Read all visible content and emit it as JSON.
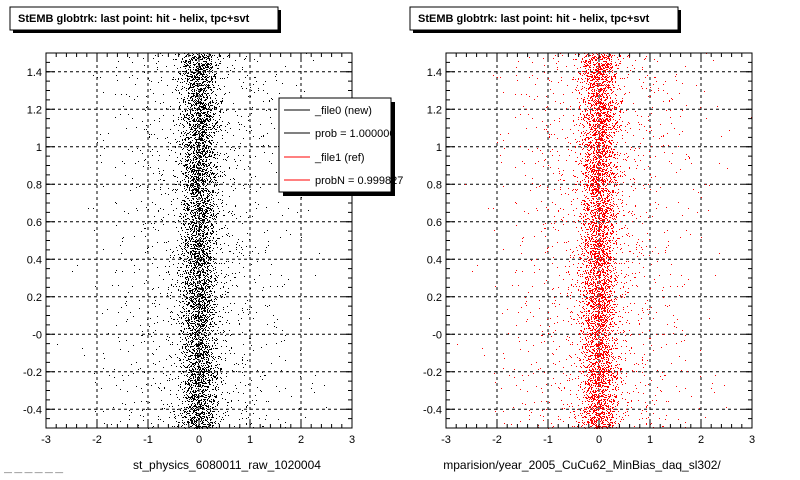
{
  "chart_data": [
    {
      "type": "scatter",
      "title": "StEMB globtrk: last point: hit - helix, tpc+svt",
      "xlabel": "st_physics_6080011_raw_1020004",
      "xlim": [
        -3,
        3
      ],
      "ylim": [
        -0.5,
        1.5
      ],
      "xticks": [
        "-3",
        "-2",
        "-1",
        "0",
        "1",
        "2",
        "3"
      ],
      "yticks": [
        "-0.4",
        "-0.2",
        "-0",
        "0.2",
        "0.4",
        "0.6",
        "0.8",
        "1",
        "1.2",
        "1.4"
      ],
      "grid": true,
      "marker_color": "#000000",
      "distribution": {
        "x_center": 0,
        "x_core_sigma": 0.18,
        "x_tail_sigma": 0.9,
        "y_uniform": [
          -0.5,
          1.5
        ]
      },
      "legend": {
        "placement": "top-right",
        "entries": [
          {
            "label": "_file0 (new)",
            "color": "#000000"
          },
          {
            "label": "prob = 1.000000",
            "color": "#000000"
          },
          {
            "label": "_file1 (ref)",
            "color": "#ff0000"
          },
          {
            "label": "probN = 0.999827",
            "color": "#ff0000"
          }
        ]
      }
    },
    {
      "type": "scatter",
      "title": "StEMB globtrk: last point: hit - helix, tpc+svt",
      "xlabel": "mparision/year_2005_CuCu62_MinBias_daq_sl302/",
      "xlim": [
        -3,
        3
      ],
      "ylim": [
        -0.5,
        1.5
      ],
      "xticks": [
        "-3",
        "-2",
        "-1",
        "0",
        "1",
        "2",
        "3"
      ],
      "yticks": [
        "-0.4",
        "-0.2",
        "-0",
        "0.2",
        "0.4",
        "0.6",
        "0.8",
        "1",
        "1.2",
        "1.4"
      ],
      "grid": true,
      "marker_color": "#ff0000",
      "distribution": {
        "x_center": 0,
        "x_core_sigma": 0.18,
        "x_tail_sigma": 0.9,
        "y_uniform": [
          -0.5,
          1.5
        ]
      }
    }
  ],
  "footer": "— — — — — —"
}
